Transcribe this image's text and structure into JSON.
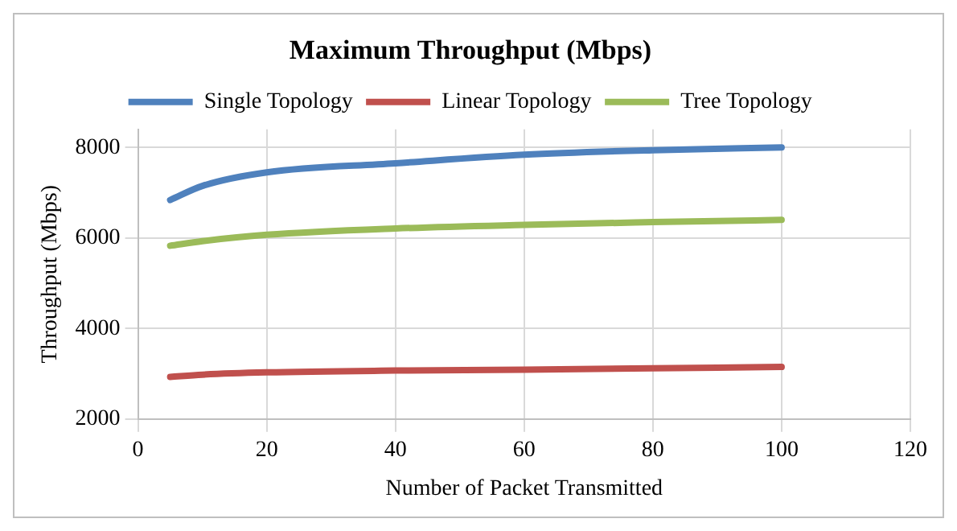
{
  "chart_data": {
    "type": "line",
    "title": "Maximum Throughput (Mbps)",
    "xlabel": "Number of Packet Transmitted",
    "ylabel": "Throughput (Mbps)",
    "x": [
      5,
      10,
      20,
      40,
      60,
      80,
      100
    ],
    "series": [
      {
        "name": "Single Topology",
        "color": "#4f81bd",
        "values": [
          6840,
          7150,
          7450,
          7650,
          7840,
          7940,
          8000
        ]
      },
      {
        "name": "Linear Topology",
        "color": "#c0504d",
        "values": [
          2930,
          2980,
          3030,
          3070,
          3090,
          3120,
          3150
        ]
      },
      {
        "name": "Tree Topology",
        "color": "#9bbb59",
        "values": [
          5830,
          5930,
          6070,
          6210,
          6290,
          6350,
          6400
        ]
      }
    ],
    "xlim": [
      0,
      120
    ],
    "xticks": [
      0,
      20,
      40,
      60,
      80,
      100,
      120
    ],
    "ylim": [
      2000,
      8400
    ],
    "yticks": [
      2000,
      4000,
      6000,
      8000
    ],
    "grid": true,
    "legend": "top",
    "marker": "none",
    "line_style": "solid"
  }
}
